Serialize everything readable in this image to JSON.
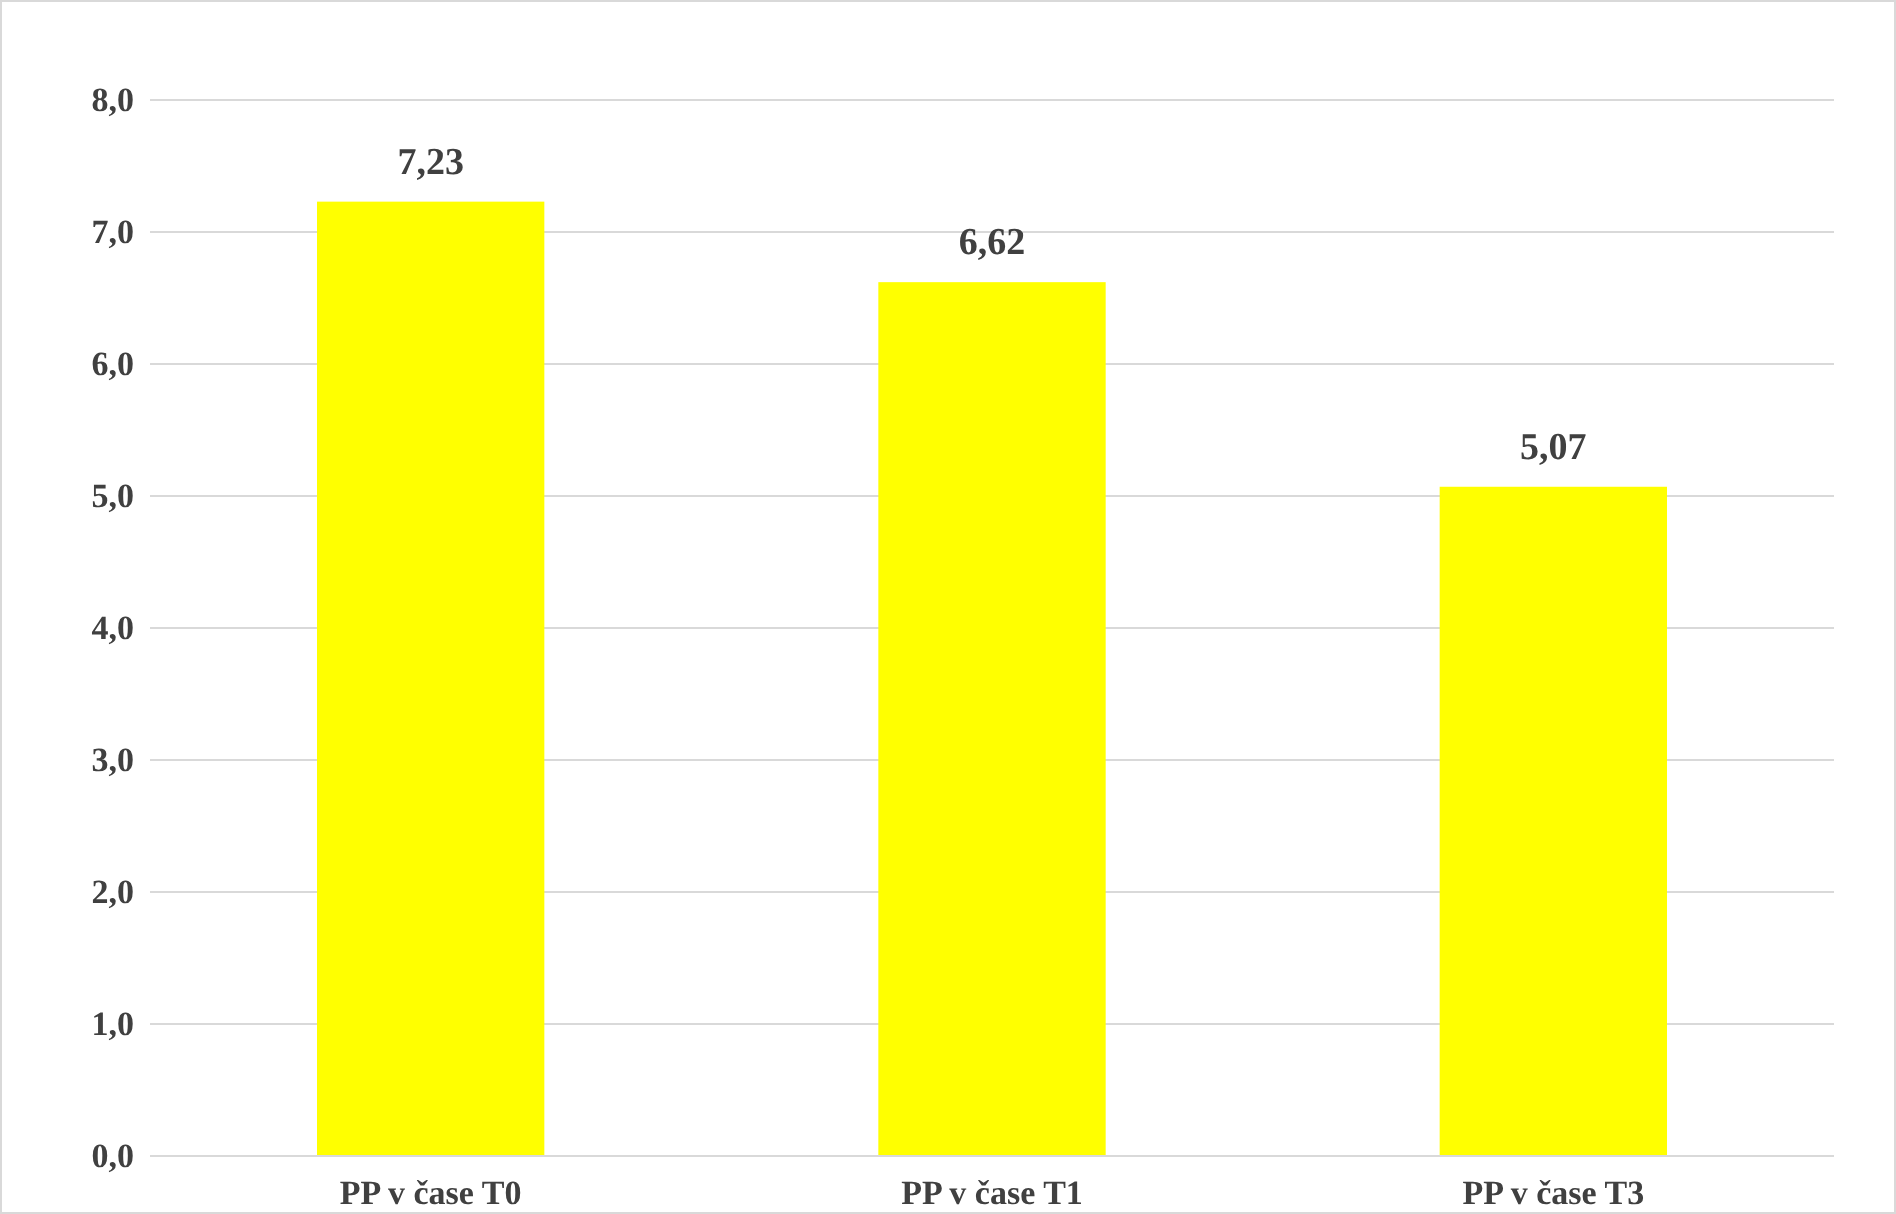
{
  "chart_data": {
    "type": "bar",
    "categories": [
      "PP v čase T0",
      "PP v čase T1",
      "PP v čase T3"
    ],
    "values": [
      7.23,
      6.62,
      5.07
    ],
    "value_labels": [
      "7,23",
      "6,62",
      "5,07"
    ],
    "color": "#ffff00",
    "ylim": [
      0,
      8
    ],
    "yticks": [
      {
        "value": 0,
        "label": "0,0"
      },
      {
        "value": 1,
        "label": "1,0"
      },
      {
        "value": 2,
        "label": "2,0"
      },
      {
        "value": 3,
        "label": "3,0"
      },
      {
        "value": 4,
        "label": "4,0"
      },
      {
        "value": 5,
        "label": "5,0"
      },
      {
        "value": 6,
        "label": "6,0"
      },
      {
        "value": 7,
        "label": "7,0"
      },
      {
        "value": 8,
        "label": "8,0"
      }
    ],
    "grid": "y"
  }
}
